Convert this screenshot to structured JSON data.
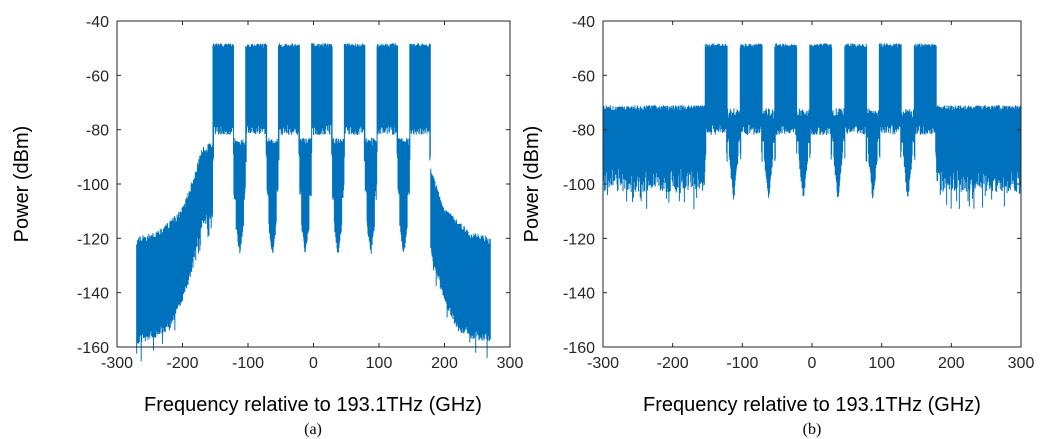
{
  "chart_data": [
    {
      "type": "line",
      "panel_label": "(a)",
      "xlabel": "Frequency relative to 193.1THz (GHz)",
      "ylabel": "Power (dBm)",
      "xlim": [
        -300,
        300
      ],
      "ylim": [
        -160,
        -40
      ],
      "xticks": [
        -300,
        -200,
        -100,
        0,
        100,
        200,
        300
      ],
      "yticks": [
        -160,
        -140,
        -120,
        -100,
        -80,
        -60,
        -40
      ],
      "grid": false,
      "series_color": "#0072BD",
      "channel_centers": [
        -137.5,
        -87.5,
        -37.5,
        12.5,
        62.5,
        112.5,
        162.5
      ],
      "channel_centers_note": "",
      "channels": {
        "centers": [
          -137.5,
          -87.5,
          -37.5,
          12.5,
          62.5,
          112.5,
          162.5
        ],
        "width": 32,
        "top": -49,
        "floor": -80
      },
      "envelope": {
        "x": [
          -270,
          -240,
          -220,
          -200,
          -185,
          -170,
          -155,
          155,
          170,
          185,
          200,
          220,
          240,
          270
        ],
        "top": [
          -121,
          -119,
          -115,
          -110,
          -100,
          -88,
          -86,
          -86,
          -88,
          -100,
          -110,
          -115,
          -119,
          -121
        ],
        "bottom": [
          -155,
          -153,
          -150,
          -140,
          -128,
          -112,
          -110,
          -110,
          -112,
          -128,
          -140,
          -150,
          -153,
          -155
        ]
      },
      "gap_dips": [
        -112.5,
        -62.5,
        -12.5,
        37.5,
        87.5,
        137.5
      ],
      "gap_dip_bottom": -124
    },
    {
      "type": "line",
      "panel_label": "(b)",
      "xlabel": "Frequency relative to 193.1THz (GHz)",
      "ylabel": "Power (dBm)",
      "xlim": [
        -300,
        300
      ],
      "ylim": [
        -160,
        -40
      ],
      "xticks": [
        -300,
        -200,
        -100,
        0,
        100,
        200,
        300
      ],
      "yticks": [
        -160,
        -140,
        -120,
        -100,
        -80,
        -60,
        -40
      ],
      "grid": false,
      "series_color": "#0072BD",
      "channels": {
        "centers": [
          -137.5,
          -87.5,
          -37.5,
          12.5,
          62.5,
          112.5,
          162.5
        ],
        "width": 32,
        "top": -49,
        "floor": -80
      },
      "noise_floor": {
        "xrange": [
          -300,
          -165,
          165,
          300
        ],
        "top": -72,
        "bottom": -103
      },
      "inband_floor": {
        "top": -72,
        "bottom": -82
      },
      "gap_dips": [
        -112.5,
        -62.5,
        -12.5,
        37.5,
        87.5,
        137.5
      ],
      "gap_dip_bottom": -104
    }
  ]
}
